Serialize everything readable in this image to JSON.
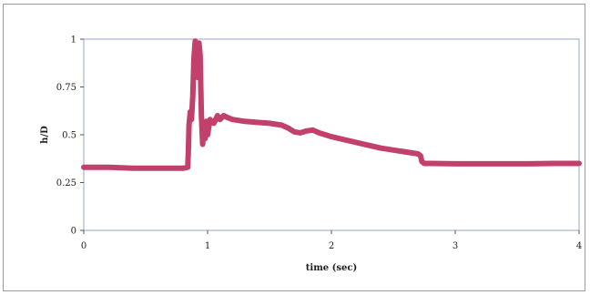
{
  "chart_data": {
    "type": "line",
    "title": "",
    "xlabel": "time (sec)",
    "ylabel": "h/D",
    "xlim": [
      0,
      4
    ],
    "ylim": [
      0,
      1
    ],
    "x_ticks": [
      0,
      1,
      2,
      3,
      4
    ],
    "y_ticks": [
      0,
      0.25,
      0.5,
      0.75,
      1
    ],
    "x_tick_labels": [
      "0",
      "1",
      "2",
      "3",
      "4"
    ],
    "y_tick_labels": [
      "0",
      "0.25",
      "0.5",
      "0.75",
      "1"
    ],
    "grid": false,
    "legend": "none",
    "series": [
      {
        "color": "#c2406c",
        "x": [
          0,
          0.2,
          0.4,
          0.6,
          0.8,
          0.84,
          0.845,
          0.85,
          0.86,
          0.87,
          0.88,
          0.89,
          0.9,
          0.91,
          0.92,
          0.93,
          0.94,
          0.95,
          0.96,
          0.97,
          0.98,
          0.99,
          1.0,
          1.02,
          1.05,
          1.08,
          1.1,
          1.13,
          1.16,
          1.2,
          1.3,
          1.4,
          1.5,
          1.6,
          1.65,
          1.7,
          1.75,
          1.8,
          1.85,
          1.9,
          1.95,
          2.0,
          2.1,
          2.2,
          2.3,
          2.4,
          2.5,
          2.6,
          2.7,
          2.72,
          2.73,
          2.75,
          2.8,
          3.0,
          3.2,
          3.4,
          3.6,
          3.8,
          4.0
        ],
        "y": [
          0.33,
          0.33,
          0.325,
          0.325,
          0.325,
          0.33,
          0.42,
          0.55,
          0.62,
          0.58,
          0.7,
          0.9,
          0.99,
          0.96,
          0.8,
          0.98,
          0.92,
          0.6,
          0.45,
          0.55,
          0.48,
          0.57,
          0.5,
          0.58,
          0.56,
          0.6,
          0.58,
          0.6,
          0.59,
          0.58,
          0.57,
          0.565,
          0.56,
          0.55,
          0.535,
          0.515,
          0.51,
          0.52,
          0.525,
          0.51,
          0.5,
          0.49,
          0.475,
          0.46,
          0.445,
          0.43,
          0.42,
          0.41,
          0.4,
          0.39,
          0.36,
          0.35,
          0.35,
          0.348,
          0.348,
          0.348,
          0.348,
          0.35,
          0.35
        ]
      }
    ]
  }
}
